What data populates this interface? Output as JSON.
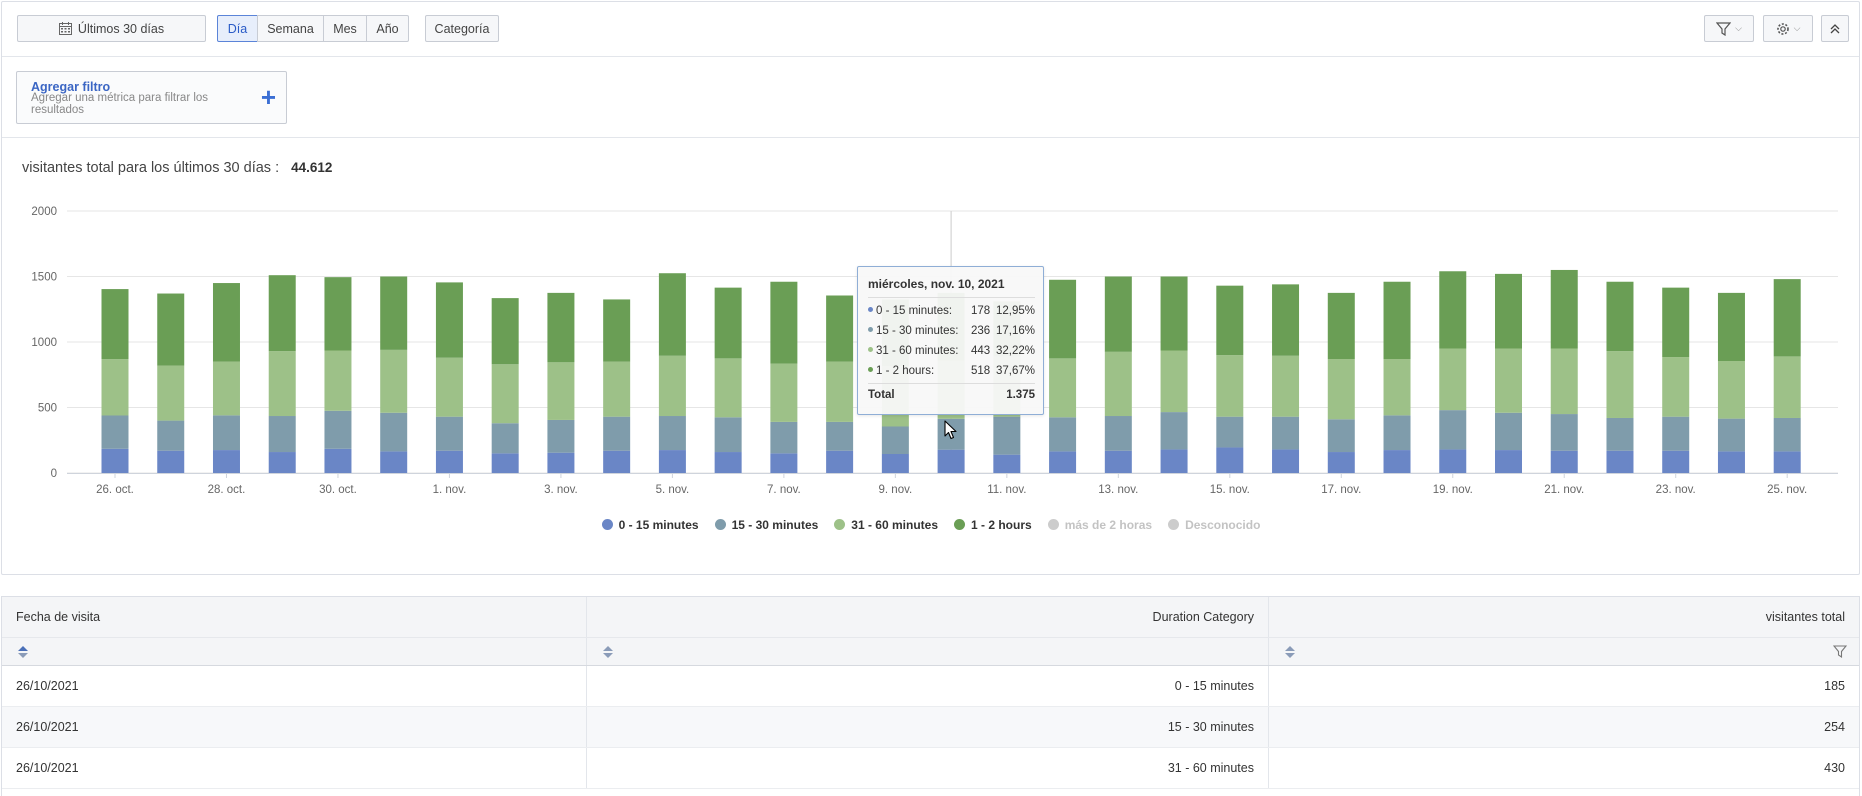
{
  "toolbar": {
    "date_range": "Últimos 30 días",
    "periods": [
      "Día",
      "Semana",
      "Mes",
      "Año"
    ],
    "active_period": "Día",
    "category": "Categoría",
    "icons": {
      "filter": "filter-icon",
      "settings": "gear-icon",
      "collapse": "collapse-up-icon",
      "calendar": "calendar-icon"
    }
  },
  "filter": {
    "add_label": "Agregar filtro",
    "add_desc": "Agregar una métrica para filtrar los resultados"
  },
  "summary": {
    "label": "visitantes total para los últimos 30 días :",
    "value": "44.612"
  },
  "chart_data": {
    "type": "bar",
    "stacked": true,
    "ylim": [
      0,
      2000
    ],
    "yticks": [
      "0",
      "500",
      "1000",
      "1500",
      "2000"
    ],
    "categories": [
      "26/10",
      "27/10",
      "28/10",
      "29/10",
      "30/10",
      "31/10",
      "1/11",
      "2/11",
      "3/11",
      "4/11",
      "5/11",
      "6/11",
      "7/11",
      "8/11",
      "9/11",
      "10/11",
      "11/11",
      "12/11",
      "13/11",
      "14/11",
      "15/11",
      "16/11",
      "17/11",
      "18/11",
      "19/11",
      "20/11",
      "21/11",
      "22/11",
      "23/11",
      "24/11",
      "25/11"
    ],
    "tick_labels": [
      "26. oct.",
      "28. oct.",
      "30. oct.",
      "1. nov.",
      "3. nov.",
      "5. nov.",
      "7. nov.",
      "9. nov.",
      "11. nov.",
      "13. nov.",
      "15. nov.",
      "17. nov.",
      "19. nov.",
      "21. nov.",
      "23. nov.",
      "25. nov."
    ],
    "series": [
      {
        "name": "0 - 15 minutes",
        "color": "#6a86c6",
        "values": [
          185,
          170,
          175,
          160,
          185,
          165,
          170,
          150,
          155,
          170,
          175,
          160,
          150,
          170,
          145,
          178,
          140,
          165,
          170,
          180,
          195,
          180,
          160,
          175,
          180,
          175,
          170,
          170,
          170,
          165,
          165
        ]
      },
      {
        "name": "15 - 30 minutes",
        "color": "#7f9cab",
        "values": [
          254,
          230,
          265,
          275,
          290,
          295,
          260,
          230,
          250,
          260,
          260,
          265,
          240,
          220,
          210,
          236,
          290,
          260,
          265,
          285,
          235,
          250,
          250,
          265,
          300,
          285,
          280,
          250,
          260,
          250,
          255
        ]
      },
      {
        "name": "31 - 60 minutes",
        "color": "#9dc188",
        "values": [
          430,
          420,
          410,
          495,
          460,
          480,
          450,
          450,
          440,
          420,
          460,
          450,
          445,
          460,
          460,
          443,
          460,
          450,
          490,
          470,
          470,
          465,
          460,
          430,
          470,
          490,
          500,
          510,
          455,
          440,
          470
        ]
      },
      {
        "name": "1 - 2 hours",
        "color": "#6a9e55",
        "values": [
          535,
          550,
          600,
          580,
          560,
          560,
          575,
          505,
          530,
          475,
          630,
          540,
          625,
          505,
          510,
          518,
          420,
          600,
          575,
          565,
          530,
          545,
          505,
          590,
          590,
          570,
          600,
          530,
          530,
          520,
          590
        ]
      }
    ],
    "legend": [
      {
        "name": "0 - 15 minutes",
        "color": "#6a86c6",
        "enabled": true
      },
      {
        "name": "15 - 30 minutes",
        "color": "#7f9cab",
        "enabled": true
      },
      {
        "name": "31 - 60 minutes",
        "color": "#9dc188",
        "enabled": true
      },
      {
        "name": "1 - 2 hours",
        "color": "#6a9e55",
        "enabled": true
      },
      {
        "name": "más de 2 horas",
        "color": "#cccccc",
        "enabled": false
      },
      {
        "name": "Desconocido",
        "color": "#cccccc",
        "enabled": false
      }
    ],
    "highlight_index": 15
  },
  "tooltip": {
    "title": "miércoles, nov. 10, 2021",
    "rows": [
      {
        "label": "0 - 15 minutes:",
        "value": "178",
        "pct": "12,95%",
        "color": "#6a86c6"
      },
      {
        "label": "15 - 30 minutes:",
        "value": "236",
        "pct": "17,16%",
        "color": "#7f9cab"
      },
      {
        "label": "31 - 60 minutes:",
        "value": "443",
        "pct": "32,22%",
        "color": "#9dc188"
      },
      {
        "label": "1 - 2 hours:",
        "value": "518",
        "pct": "37,67%",
        "color": "#6a9e55"
      }
    ],
    "total_label": "Total",
    "total_value": "1.375"
  },
  "table": {
    "headers": [
      "Fecha de visita",
      "Duration Category",
      "visitantes total"
    ],
    "rows": [
      [
        "26/10/2021",
        "0 - 15 minutes",
        "185"
      ],
      [
        "26/10/2021",
        "15 - 30 minutes",
        "254"
      ],
      [
        "26/10/2021",
        "31 - 60 minutes",
        "430"
      ]
    ]
  }
}
